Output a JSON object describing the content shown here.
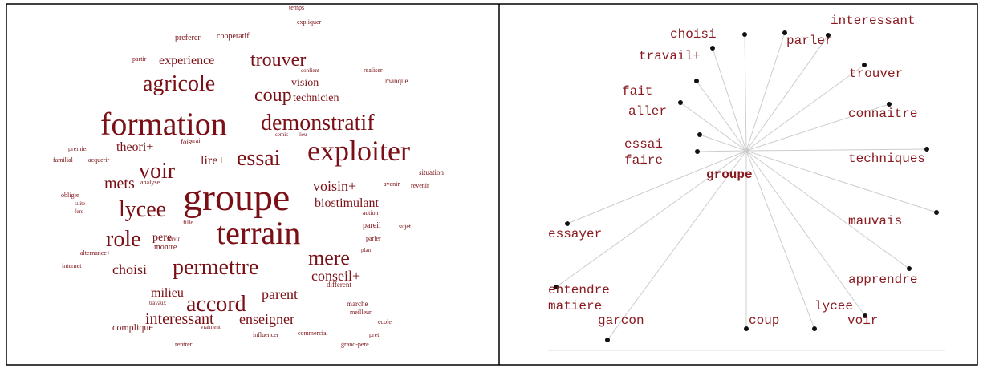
{
  "cloud": {
    "words": [
      "temps",
      "expliquer",
      "preferer",
      "cooperatif",
      "partir",
      "experience",
      "trouver",
      "confient",
      "realiser",
      "manque",
      "agricole",
      "coup",
      "vision",
      "technicien",
      "formation",
      "demonstratif",
      "semis",
      "lieu",
      "theori+",
      "fois",
      "vrai",
      "premier",
      "familial",
      "acquerir",
      "lire+",
      "essai",
      "exploiter",
      "voir",
      "mets",
      "analyse",
      "situation",
      "avenir",
      "revenir",
      "voisin+",
      "biostimulant",
      "obliger",
      "suite",
      "fere",
      "lycee",
      "groupe",
      "fille",
      "action",
      "pareil",
      "sujet",
      "role",
      "pere",
      "servir",
      "montre",
      "terrain",
      "parler",
      "plan",
      "alternance+",
      "internet",
      "choisi",
      "permettre",
      "mere",
      "conseil+",
      "different",
      "milieu",
      "travaux",
      "accord",
      "parent",
      "marche",
      "meilleur",
      "ecole",
      "interessant",
      "enseigner",
      "complique",
      "vraiment",
      "influencer",
      "commercial",
      "pret",
      "rentrer",
      "grand-pere"
    ]
  },
  "graph": {
    "center": "groupe",
    "nodes": [
      "choisi",
      "parler",
      "interessant",
      "travail+",
      "trouver",
      "fait",
      "aller",
      "connaitre",
      "essai",
      "faire",
      "techniques",
      "mauvais",
      "essayer",
      "apprendre",
      "entendre",
      "matiere",
      "lycee",
      "voir",
      "garcon",
      "coup"
    ]
  }
}
